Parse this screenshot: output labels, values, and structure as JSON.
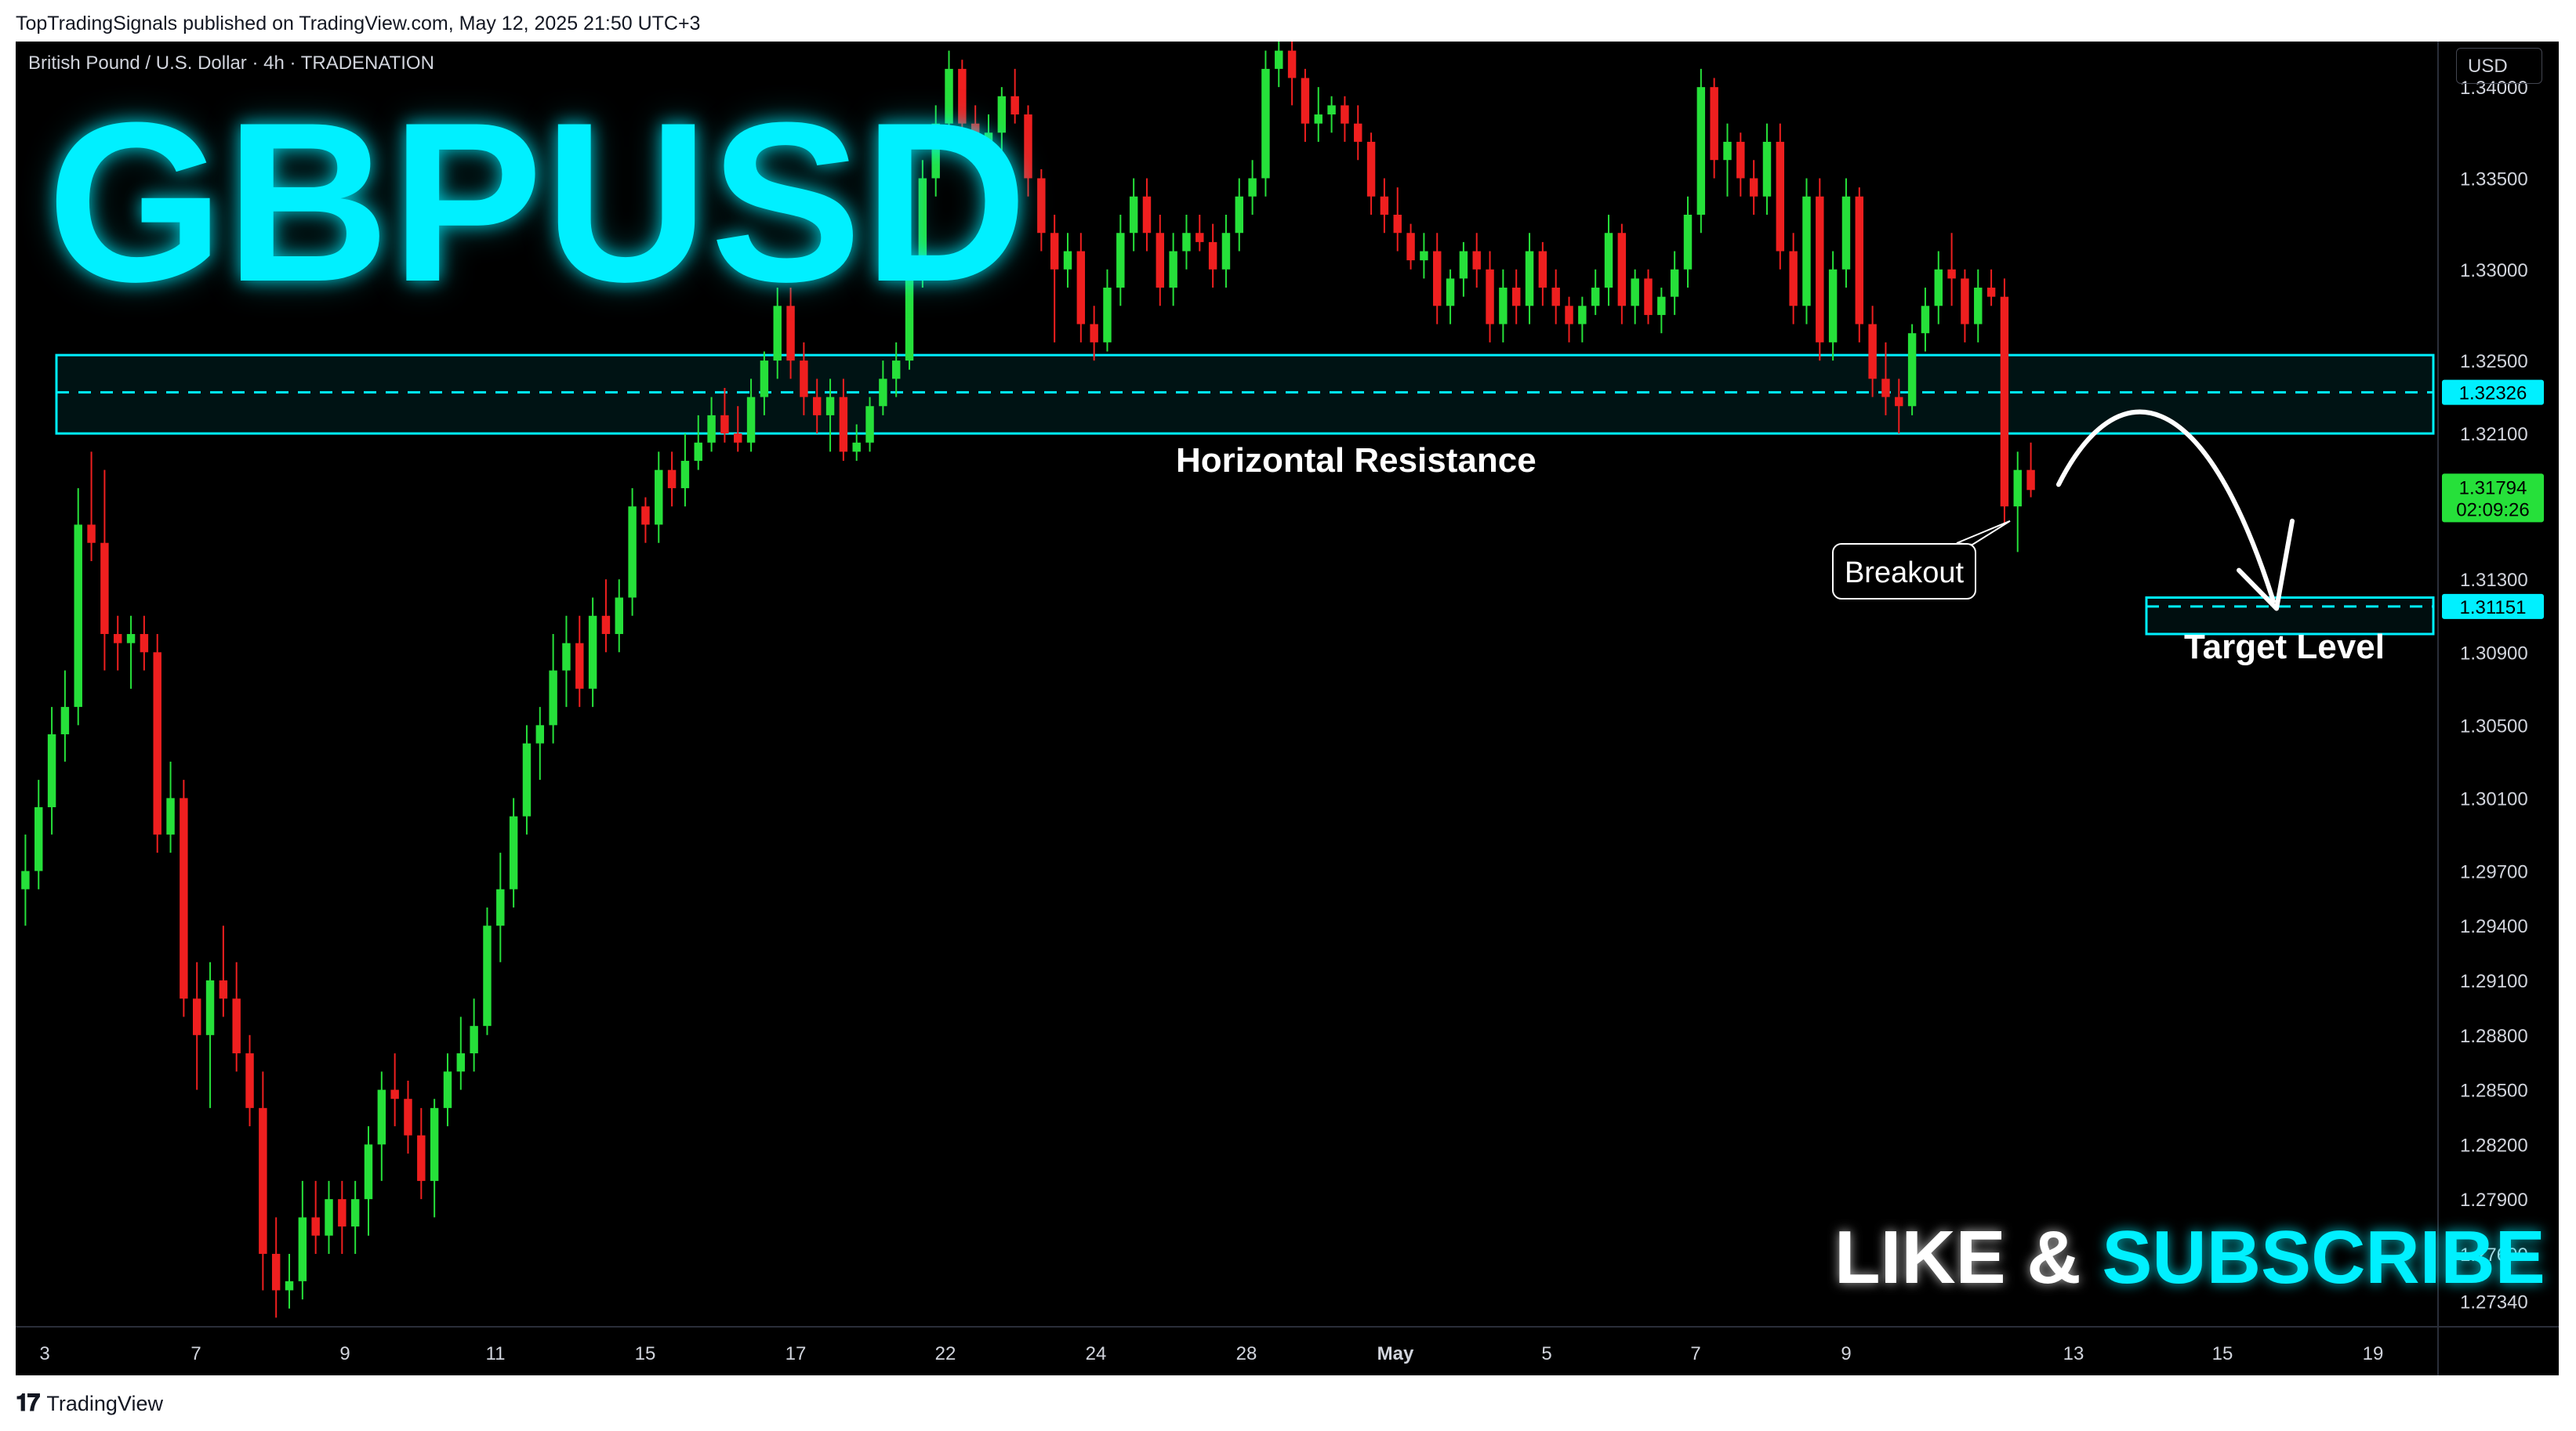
{
  "header": {
    "published_by": "TopTradingSignals published on TradingView.com, May 12, 2025 21:50 UTC+3"
  },
  "chart_header": {
    "symbol": "British Pound / U.S. Dollar · 4h · TRADENATION"
  },
  "overlays": {
    "big_title": "GBPUSD",
    "resistance_label": "Horizontal Resistance",
    "target_label": "Target Level",
    "breakout_label": "Breakout",
    "like_text": "LIKE",
    "amp": "&",
    "subscribe_text": "SUBSCRIBE"
  },
  "price_axis": {
    "currency": "USD",
    "labels": [
      "1.34000",
      "1.33500",
      "1.33000",
      "1.32500",
      "1.32100",
      "1.31300",
      "1.30900",
      "1.30500",
      "1.30100",
      "1.29700",
      "1.29400",
      "1.29100",
      "1.28800",
      "1.28500",
      "1.28200",
      "1.27900",
      "1.27600",
      "1.27340"
    ],
    "resistance_badge": "1.32326",
    "price_badge": "1.31794",
    "countdown": "02:09:26",
    "target_badge": "1.31151"
  },
  "time_axis": {
    "labels": [
      "3",
      "7",
      "9",
      "11",
      "15",
      "17",
      "22",
      "24",
      "28",
      "May",
      "5",
      "7",
      "9",
      "13",
      "15",
      "19"
    ]
  },
  "footer": {
    "brand": "TradingView"
  },
  "colors": {
    "up": "#26e03a",
    "down": "#ef1f1f",
    "accent": "#00f0ff",
    "background": "#000000"
  },
  "chart_data": {
    "type": "candlestick",
    "symbol": "GBPUSD",
    "timeframe": "4h",
    "y_axis": {
      "min": 1.272,
      "max": 1.3425,
      "ticks": [
        1.34,
        1.335,
        1.33,
        1.325,
        1.321,
        1.313,
        1.309,
        1.305,
        1.301,
        1.297,
        1.294,
        1.291,
        1.288,
        1.285,
        1.282,
        1.279,
        1.276,
        1.2734
      ]
    },
    "x_ticks": [
      "3",
      "7",
      "9",
      "11",
      "15",
      "17",
      "22",
      "24",
      "28",
      "May",
      "5",
      "7",
      "9",
      "13",
      "15",
      "19"
    ],
    "resistance_zone": {
      "low": 1.321,
      "high": 1.3253,
      "level": 1.32326
    },
    "target_zone": {
      "low": 1.31,
      "high": 1.312,
      "level": 1.31151
    },
    "last_price": 1.31794,
    "candles": [
      [
        1.296,
        1.299,
        1.294,
        1.297
      ],
      [
        1.297,
        1.302,
        1.296,
        1.3005
      ],
      [
        1.3005,
        1.306,
        1.299,
        1.3045
      ],
      [
        1.3045,
        1.308,
        1.303,
        1.306
      ],
      [
        1.306,
        1.318,
        1.305,
        1.316
      ],
      [
        1.316,
        1.32,
        1.314,
        1.315
      ],
      [
        1.315,
        1.319,
        1.308,
        1.31
      ],
      [
        1.31,
        1.311,
        1.308,
        1.3095
      ],
      [
        1.3095,
        1.311,
        1.307,
        1.31
      ],
      [
        1.31,
        1.311,
        1.308,
        1.309
      ],
      [
        1.309,
        1.31,
        1.298,
        1.299
      ],
      [
        1.299,
        1.303,
        1.298,
        1.301
      ],
      [
        1.301,
        1.302,
        1.289,
        1.29
      ],
      [
        1.29,
        1.292,
        1.285,
        1.288
      ],
      [
        1.288,
        1.292,
        1.284,
        1.291
      ],
      [
        1.291,
        1.294,
        1.289,
        1.29
      ],
      [
        1.29,
        1.292,
        1.286,
        1.287
      ],
      [
        1.287,
        1.288,
        1.283,
        1.284
      ],
      [
        1.284,
        1.286,
        1.274,
        1.276
      ],
      [
        1.276,
        1.278,
        1.2725,
        1.274
      ],
      [
        1.274,
        1.276,
        1.273,
        1.2745
      ],
      [
        1.2745,
        1.28,
        1.2735,
        1.278
      ],
      [
        1.278,
        1.28,
        1.276,
        1.277
      ],
      [
        1.277,
        1.28,
        1.276,
        1.279
      ],
      [
        1.279,
        1.28,
        1.276,
        1.2775
      ],
      [
        1.2775,
        1.28,
        1.276,
        1.279
      ],
      [
        1.279,
        1.283,
        1.277,
        1.282
      ],
      [
        1.282,
        1.286,
        1.28,
        1.285
      ],
      [
        1.285,
        1.287,
        1.283,
        1.2845
      ],
      [
        1.2845,
        1.2855,
        1.2815,
        1.2825
      ],
      [
        1.2825,
        1.284,
        1.279,
        1.28
      ],
      [
        1.28,
        1.2845,
        1.278,
        1.284
      ],
      [
        1.284,
        1.287,
        1.283,
        1.286
      ],
      [
        1.286,
        1.289,
        1.285,
        1.287
      ],
      [
        1.287,
        1.29,
        1.286,
        1.2885
      ],
      [
        1.2885,
        1.295,
        1.288,
        1.294
      ],
      [
        1.294,
        1.298,
        1.292,
        1.296
      ],
      [
        1.296,
        1.301,
        1.295,
        1.3
      ],
      [
        1.3,
        1.305,
        1.299,
        1.304
      ],
      [
        1.304,
        1.306,
        1.302,
        1.305
      ],
      [
        1.305,
        1.31,
        1.304,
        1.308
      ],
      [
        1.308,
        1.311,
        1.306,
        1.3095
      ],
      [
        1.3095,
        1.311,
        1.306,
        1.307
      ],
      [
        1.307,
        1.312,
        1.306,
        1.311
      ],
      [
        1.311,
        1.313,
        1.309,
        1.31
      ],
      [
        1.31,
        1.313,
        1.309,
        1.312
      ],
      [
        1.312,
        1.318,
        1.311,
        1.317
      ],
      [
        1.317,
        1.3175,
        1.315,
        1.316
      ],
      [
        1.316,
        1.32,
        1.315,
        1.319
      ],
      [
        1.319,
        1.32,
        1.317,
        1.318
      ],
      [
        1.318,
        1.321,
        1.317,
        1.3195
      ],
      [
        1.3195,
        1.322,
        1.319,
        1.3205
      ],
      [
        1.3205,
        1.323,
        1.32,
        1.322
      ],
      [
        1.322,
        1.3235,
        1.3205,
        1.321
      ],
      [
        1.321,
        1.3225,
        1.32,
        1.3205
      ],
      [
        1.3205,
        1.324,
        1.32,
        1.323
      ],
      [
        1.323,
        1.3255,
        1.322,
        1.325
      ],
      [
        1.325,
        1.329,
        1.324,
        1.328
      ],
      [
        1.328,
        1.329,
        1.324,
        1.325
      ],
      [
        1.325,
        1.326,
        1.322,
        1.323
      ],
      [
        1.323,
        1.324,
        1.321,
        1.322
      ],
      [
        1.322,
        1.324,
        1.32,
        1.323
      ],
      [
        1.323,
        1.324,
        1.3195,
        1.32
      ],
      [
        1.32,
        1.3215,
        1.3195,
        1.3205
      ],
      [
        1.3205,
        1.323,
        1.32,
        1.3225
      ],
      [
        1.3225,
        1.325,
        1.322,
        1.324
      ],
      [
        1.324,
        1.326,
        1.323,
        1.325
      ],
      [
        1.325,
        1.331,
        1.3245,
        1.33
      ],
      [
        1.33,
        1.336,
        1.329,
        1.335
      ],
      [
        1.335,
        1.339,
        1.334,
        1.338
      ],
      [
        1.338,
        1.342,
        1.337,
        1.341
      ],
      [
        1.341,
        1.3415,
        1.337,
        1.338
      ],
      [
        1.338,
        1.339,
        1.336,
        1.337
      ],
      [
        1.337,
        1.3385,
        1.3355,
        1.3375
      ],
      [
        1.3375,
        1.34,
        1.3365,
        1.3395
      ],
      [
        1.3395,
        1.341,
        1.338,
        1.3385
      ],
      [
        1.3385,
        1.339,
        1.334,
        1.335
      ],
      [
        1.335,
        1.3355,
        1.331,
        1.332
      ],
      [
        1.332,
        1.333,
        1.326,
        1.33
      ],
      [
        1.33,
        1.332,
        1.329,
        1.331
      ],
      [
        1.331,
        1.332,
        1.326,
        1.327
      ],
      [
        1.327,
        1.328,
        1.325,
        1.326
      ],
      [
        1.326,
        1.33,
        1.3255,
        1.329
      ],
      [
        1.329,
        1.333,
        1.328,
        1.332
      ],
      [
        1.332,
        1.335,
        1.331,
        1.334
      ],
      [
        1.334,
        1.335,
        1.331,
        1.332
      ],
      [
        1.332,
        1.333,
        1.328,
        1.329
      ],
      [
        1.329,
        1.332,
        1.328,
        1.331
      ],
      [
        1.331,
        1.333,
        1.33,
        1.332
      ],
      [
        1.332,
        1.333,
        1.331,
        1.3315
      ],
      [
        1.3315,
        1.3325,
        1.329,
        1.33
      ],
      [
        1.33,
        1.333,
        1.329,
        1.332
      ],
      [
        1.332,
        1.335,
        1.331,
        1.334
      ],
      [
        1.334,
        1.336,
        1.333,
        1.335
      ],
      [
        1.335,
        1.342,
        1.334,
        1.341
      ],
      [
        1.341,
        1.343,
        1.34,
        1.342
      ],
      [
        1.342,
        1.3425,
        1.339,
        1.3405
      ],
      [
        1.3405,
        1.341,
        1.337,
        1.338
      ],
      [
        1.338,
        1.34,
        1.337,
        1.3385
      ],
      [
        1.3385,
        1.3395,
        1.3375,
        1.339
      ],
      [
        1.339,
        1.3395,
        1.337,
        1.338
      ],
      [
        1.338,
        1.339,
        1.336,
        1.337
      ],
      [
        1.337,
        1.3375,
        1.333,
        1.334
      ],
      [
        1.334,
        1.335,
        1.332,
        1.333
      ],
      [
        1.333,
        1.3345,
        1.331,
        1.332
      ],
      [
        1.332,
        1.3325,
        1.33,
        1.3305
      ],
      [
        1.3305,
        1.332,
        1.3295,
        1.331
      ],
      [
        1.331,
        1.332,
        1.327,
        1.328
      ],
      [
        1.328,
        1.33,
        1.327,
        1.3295
      ],
      [
        1.3295,
        1.3315,
        1.3285,
        1.331
      ],
      [
        1.331,
        1.332,
        1.329,
        1.33
      ],
      [
        1.33,
        1.331,
        1.326,
        1.327
      ],
      [
        1.327,
        1.33,
        1.326,
        1.329
      ],
      [
        1.329,
        1.33,
        1.327,
        1.328
      ],
      [
        1.328,
        1.332,
        1.327,
        1.331
      ],
      [
        1.331,
        1.3315,
        1.328,
        1.329
      ],
      [
        1.329,
        1.33,
        1.327,
        1.328
      ],
      [
        1.328,
        1.3285,
        1.326,
        1.327
      ],
      [
        1.327,
        1.3285,
        1.326,
        1.328
      ],
      [
        1.328,
        1.33,
        1.3275,
        1.329
      ],
      [
        1.329,
        1.333,
        1.328,
        1.332
      ],
      [
        1.332,
        1.3325,
        1.327,
        1.328
      ],
      [
        1.328,
        1.33,
        1.327,
        1.3295
      ],
      [
        1.3295,
        1.33,
        1.327,
        1.3275
      ],
      [
        1.3275,
        1.329,
        1.3265,
        1.3285
      ],
      [
        1.3285,
        1.331,
        1.3275,
        1.33
      ],
      [
        1.33,
        1.334,
        1.329,
        1.333
      ],
      [
        1.333,
        1.341,
        1.332,
        1.34
      ],
      [
        1.34,
        1.3405,
        1.335,
        1.336
      ],
      [
        1.336,
        1.338,
        1.334,
        1.337
      ],
      [
        1.337,
        1.3375,
        1.334,
        1.335
      ],
      [
        1.335,
        1.336,
        1.333,
        1.334
      ],
      [
        1.334,
        1.338,
        1.333,
        1.337
      ],
      [
        1.337,
        1.338,
        1.33,
        1.331
      ],
      [
        1.331,
        1.332,
        1.327,
        1.328
      ],
      [
        1.328,
        1.335,
        1.327,
        1.334
      ],
      [
        1.334,
        1.335,
        1.325,
        1.326
      ],
      [
        1.326,
        1.331,
        1.325,
        1.33
      ],
      [
        1.33,
        1.335,
        1.329,
        1.334
      ],
      [
        1.334,
        1.3345,
        1.326,
        1.327
      ],
      [
        1.327,
        1.328,
        1.323,
        1.324
      ],
      [
        1.324,
        1.326,
        1.322,
        1.323
      ],
      [
        1.323,
        1.324,
        1.321,
        1.3225
      ],
      [
        1.3225,
        1.327,
        1.322,
        1.3265
      ],
      [
        1.3265,
        1.329,
        1.3255,
        1.328
      ],
      [
        1.328,
        1.331,
        1.327,
        1.33
      ],
      [
        1.33,
        1.332,
        1.328,
        1.3295
      ],
      [
        1.3295,
        1.33,
        1.326,
        1.327
      ],
      [
        1.327,
        1.33,
        1.326,
        1.329
      ],
      [
        1.329,
        1.33,
        1.328,
        1.3285
      ],
      [
        1.3285,
        1.3295,
        1.316,
        1.317
      ],
      [
        1.317,
        1.32,
        1.3145,
        1.319
      ],
      [
        1.319,
        1.3205,
        1.3175,
        1.3179
      ]
    ]
  }
}
